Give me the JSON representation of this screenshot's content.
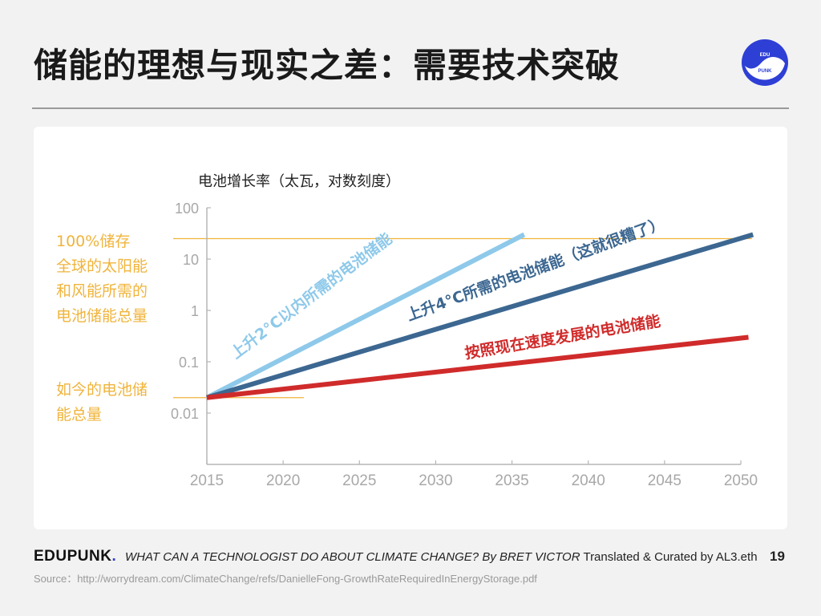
{
  "header": {
    "title": "储能的理想与现实之差：需要技术突破",
    "logo_text": "EDU PUNK"
  },
  "colors": {
    "accent_orange": "#f0b43c",
    "series_light_blue": "#8ec9ea",
    "series_dark_blue": "#3c6791",
    "series_red": "#d02b2b",
    "axis_gray": "#b5b5b5",
    "logo_blue": "#2e3fd6"
  },
  "chart_data": {
    "type": "line",
    "ylabel": "电池增长率（太瓦，对数刻度）",
    "yscale": "log",
    "ylim": [
      0.001,
      100
    ],
    "xlim": [
      2015,
      2050
    ],
    "x_ticks": [
      "2015",
      "2020",
      "2025",
      "2030",
      "2035",
      "2040",
      "2045",
      "2050"
    ],
    "y_ticks": [
      "100",
      "10",
      "1",
      "0.1",
      "0.01"
    ],
    "series": [
      {
        "name": "上升2°C以内所需的电池储能",
        "x": [
          2015,
          2035.8
        ],
        "y": [
          0.02,
          30
        ],
        "color": "#8ec9ea"
      },
      {
        "name": "上升4°C所需的电池储能（这就很糟了）",
        "x": [
          2015,
          2050.8
        ],
        "y": [
          0.02,
          30
        ],
        "color": "#3c6791"
      },
      {
        "name": "按照现在速度发展的电池储能",
        "x": [
          2015,
          2050.5
        ],
        "y": [
          0.02,
          0.3
        ],
        "color": "#d02b2b"
      }
    ],
    "reference_lines": [
      {
        "label": "100%储存全球的太阳能和风能所需的电池储能总量",
        "y": 25
      },
      {
        "label": "如今的电池储能总量",
        "y": 0.02
      }
    ]
  },
  "footer": {
    "brand": "EDUPUNK",
    "brand_dot": ".",
    "italic_text": "WHAT CAN A TECHNOLOGIST DO ABOUT CLIMATE CHANGE? By BRET VICTOR",
    "plain_text": " Translated & Curated by AL3.eth",
    "page": "19",
    "source": "Source：http://worrydream.com/ClimateChange/refs/DanielleFong-GrowthRateRequiredInEnergyStorage.pdf"
  }
}
